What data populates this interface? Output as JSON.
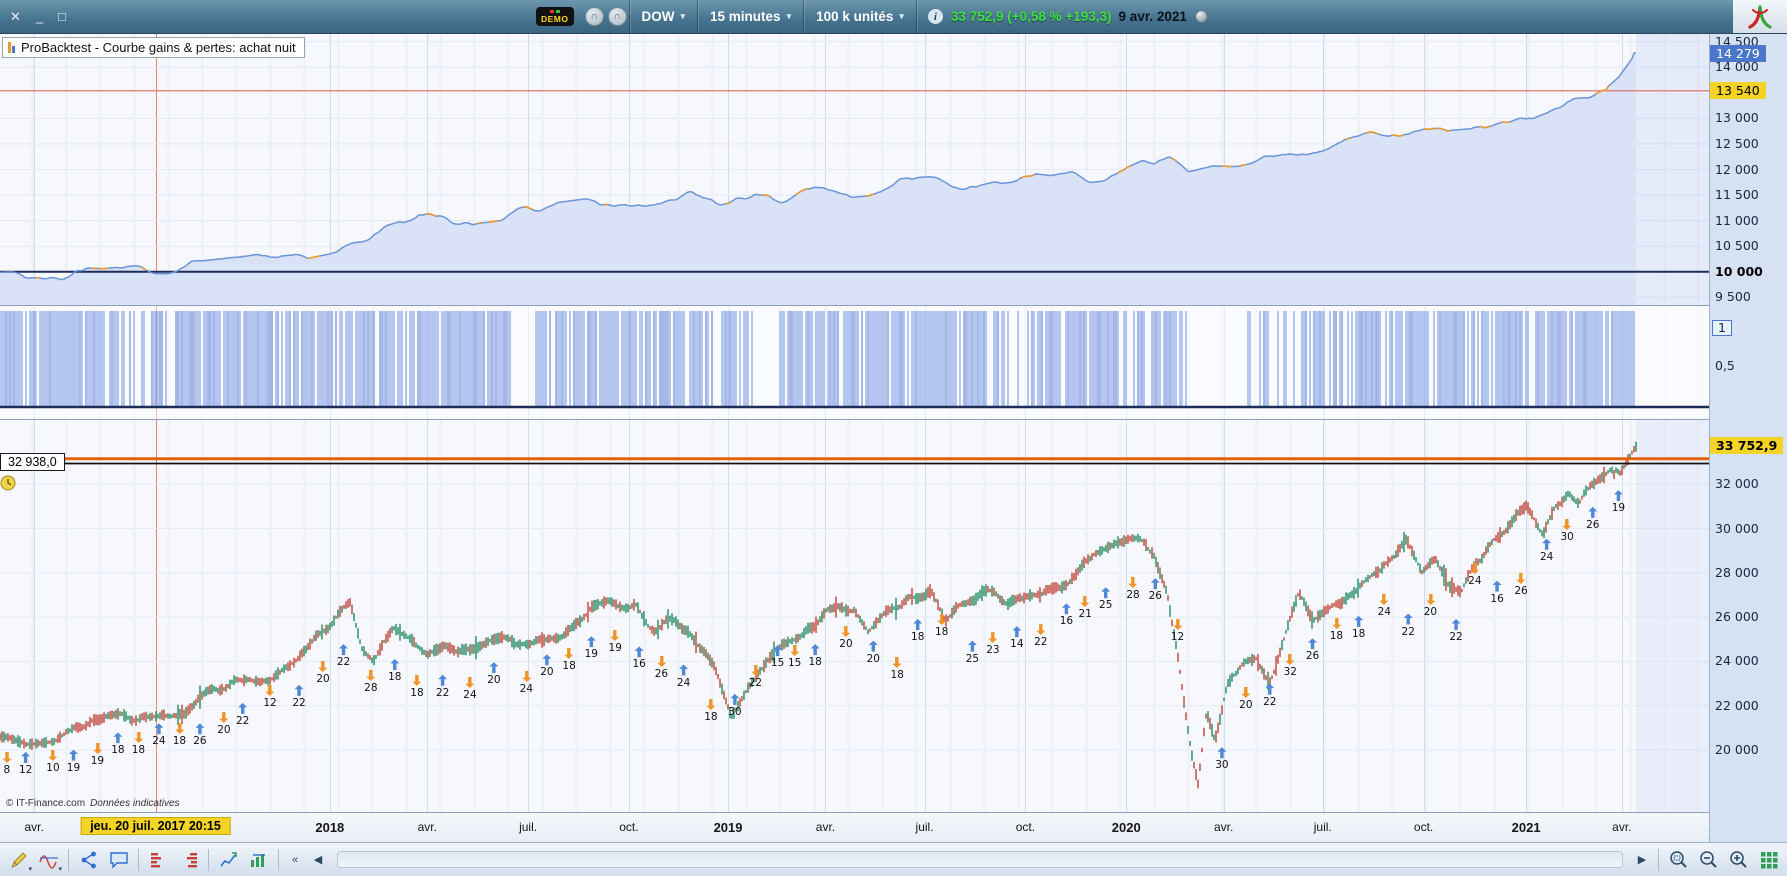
{
  "topbar": {
    "window_controls": {
      "close": "✕",
      "minimize": "_",
      "maximize": "□"
    },
    "demo_label": "DEMO",
    "symbol": "DOW",
    "timeframe": "15 minutes",
    "units": "100 k unités",
    "dropdown_arrow": "▾",
    "info_glyph": "i",
    "quote": "33 752,9 (+0,58 % +193,3)",
    "quote_date": "9 avr. 2021"
  },
  "equity_panel": {
    "title": "ProBacktest - Courbe gains & pertes: achat nuit",
    "axis": [
      {
        "t": "14 500",
        "v": 14500
      },
      {
        "t": "14 000",
        "v": 14000
      },
      {
        "t": "13 000",
        "v": 13000
      },
      {
        "t": "12 500",
        "v": 12500
      },
      {
        "t": "12 000",
        "v": 12000
      },
      {
        "t": "11 500",
        "v": 11500
      },
      {
        "t": "11 000",
        "v": 11000
      },
      {
        "t": "10 500",
        "v": 10500
      },
      {
        "t": "10 000",
        "v": 10000,
        "b": true
      },
      {
        "t": "9 500",
        "v": 9500
      }
    ],
    "badges": [
      {
        "t": "14 279",
        "v": 14279,
        "s": "blue"
      },
      {
        "t": "13 540",
        "v": 13540,
        "s": "yellow"
      }
    ]
  },
  "signal_panel": {
    "axis": [
      {
        "t": "1",
        "y": 14,
        "boxed": true
      },
      {
        "t": "0,5",
        "y": 52
      }
    ]
  },
  "price_panel": {
    "axis": [
      {
        "t": "32 000",
        "v": 32000
      },
      {
        "t": "30 000",
        "v": 30000
      },
      {
        "t": "28 000",
        "v": 28000
      },
      {
        "t": "26 000",
        "v": 26000
      },
      {
        "t": "24 000",
        "v": 24000
      },
      {
        "t": "22 000",
        "v": 22000
      },
      {
        "t": "20 000",
        "v": 20000
      }
    ],
    "badges": [
      {
        "t": "33 752,9",
        "v": 33752.9,
        "s": "yellow"
      }
    ],
    "left_tag": "32 938,0",
    "left_tag_value": 32938,
    "copyright": "© IT-Finance.com",
    "copyright_note": "Données indicatives"
  },
  "xaxis": {
    "cursor_badge": "jeu. 20 juil. 2017 20:15",
    "cursor_x": 9.1,
    "items": [
      {
        "label": "avr.",
        "x": 2.0
      },
      {
        "label": "2018",
        "x": 19.3,
        "year": true
      },
      {
        "label": "avr.",
        "x": 25.0
      },
      {
        "label": "juil.",
        "x": 30.9
      },
      {
        "label": "oct.",
        "x": 36.8
      },
      {
        "label": "2019",
        "x": 42.6,
        "year": true
      },
      {
        "label": "avr.",
        "x": 48.3
      },
      {
        "label": "juil.",
        "x": 54.1
      },
      {
        "label": "oct.",
        "x": 60.0
      },
      {
        "label": "2020",
        "x": 65.9,
        "year": true
      },
      {
        "label": "avr.",
        "x": 71.6
      },
      {
        "label": "juil.",
        "x": 77.4
      },
      {
        "label": "oct.",
        "x": 83.3
      },
      {
        "label": "2021",
        "x": 89.3,
        "year": true
      },
      {
        "label": "avr.",
        "x": 94.9
      }
    ]
  },
  "toolbar_bottom": {
    "icons": [
      "draw-tools",
      "indicator-curve",
      "share",
      "chat",
      "volume-bars",
      "volume-bars-alt",
      "backtest-chart",
      "strategy-chart",
      "collapse",
      "scroll-left",
      "scrollbar",
      "scroll-right",
      "zoom-selection",
      "zoom-out",
      "zoom-in",
      "grid-view"
    ]
  },
  "chart_data": [
    {
      "id": "equity",
      "type": "line",
      "title": "ProBacktest - Courbe gains & pertes: achat nuit",
      "ylim": [
        9350,
        14650
      ],
      "data_end": 0.957,
      "colors": {
        "line": "#6b94d9",
        "fill": "#d9e2f6",
        "alt_segments": "#ec9a2d"
      },
      "lines": [
        {
          "v": 13540,
          "c": "#e0685f",
          "w": 1.2
        },
        {
          "v": 10000,
          "c": "#1d2c58",
          "w": 2
        }
      ],
      "anchors": [
        [
          0,
          10000
        ],
        [
          0.02,
          10010
        ],
        [
          0.04,
          9960
        ],
        [
          0.06,
          9930
        ],
        [
          0.08,
          9990
        ],
        [
          0.1,
          10060
        ],
        [
          0.12,
          10090
        ],
        [
          0.145,
          10180
        ],
        [
          0.17,
          10320
        ],
        [
          0.193,
          10480
        ],
        [
          0.21,
          10640
        ],
        [
          0.23,
          10900
        ],
        [
          0.245,
          11080
        ],
        [
          0.255,
          10960
        ],
        [
          0.27,
          11020
        ],
        [
          0.29,
          11120
        ],
        [
          0.31,
          11160
        ],
        [
          0.33,
          11240
        ],
        [
          0.35,
          11330
        ],
        [
          0.37,
          11420
        ],
        [
          0.39,
          11390
        ],
        [
          0.405,
          11440
        ],
        [
          0.42,
          11310
        ],
        [
          0.435,
          11380
        ],
        [
          0.45,
          11440
        ],
        [
          0.47,
          11500
        ],
        [
          0.49,
          11560
        ],
        [
          0.51,
          11620
        ],
        [
          0.53,
          11700
        ],
        [
          0.55,
          11740
        ],
        [
          0.565,
          11640
        ],
        [
          0.58,
          11690
        ],
        [
          0.6,
          11810
        ],
        [
          0.615,
          11750
        ],
        [
          0.63,
          11850
        ],
        [
          0.645,
          11900
        ],
        [
          0.659,
          12050
        ],
        [
          0.668,
          12200
        ],
        [
          0.676,
          12050
        ],
        [
          0.685,
          12150
        ],
        [
          0.695,
          12080
        ],
        [
          0.71,
          12200
        ],
        [
          0.73,
          12180
        ],
        [
          0.75,
          12300
        ],
        [
          0.77,
          12420
        ],
        [
          0.79,
          12540
        ],
        [
          0.81,
          12650
        ],
        [
          0.83,
          12780
        ],
        [
          0.85,
          12900
        ],
        [
          0.87,
          12950
        ],
        [
          0.89,
          13060
        ],
        [
          0.905,
          13180
        ],
        [
          0.92,
          13360
        ],
        [
          0.932,
          13500
        ],
        [
          0.94,
          13620
        ],
        [
          0.948,
          13850
        ],
        [
          0.953,
          14080
        ],
        [
          0.957,
          14279
        ]
      ]
    },
    {
      "id": "signal",
      "type": "bar",
      "ylim": [
        0,
        1
      ],
      "data_end": 0.957,
      "density": [
        [
          0,
          0.06,
          0.9
        ],
        [
          0.06,
          0.09,
          0.55
        ],
        [
          0.09,
          0.2,
          0.8
        ],
        [
          0.2,
          0.3,
          0.85
        ],
        [
          0.3,
          0.313,
          0.08
        ],
        [
          0.313,
          0.36,
          0.8
        ],
        [
          0.36,
          0.44,
          0.75
        ],
        [
          0.44,
          0.456,
          0.06
        ],
        [
          0.456,
          0.52,
          0.8
        ],
        [
          0.52,
          0.59,
          0.75
        ],
        [
          0.59,
          0.601,
          0.12
        ],
        [
          0.601,
          0.66,
          0.85
        ],
        [
          0.66,
          0.695,
          0.8
        ],
        [
          0.695,
          0.728,
          0.06
        ],
        [
          0.728,
          0.79,
          0.45
        ],
        [
          0.79,
          0.9,
          0.8
        ],
        [
          0.9,
          0.957,
          0.85
        ],
        [
          0.957,
          1,
          0
        ]
      ]
    },
    {
      "id": "price",
      "type": "candlestick",
      "ylim": [
        17200,
        34900
      ],
      "data_end": 0.957,
      "lines": [
        {
          "v": 33150,
          "c": "#e2620c",
          "w": 3
        },
        {
          "v": 32938,
          "c": "#141414",
          "w": 1.8
        }
      ],
      "anchors": [
        [
          0,
          20600
        ],
        [
          0.02,
          20700
        ],
        [
          0.05,
          20950
        ],
        [
          0.079,
          21350
        ],
        [
          0.1,
          21850
        ],
        [
          0.12,
          22300
        ],
        [
          0.138,
          23050
        ],
        [
          0.16,
          23600
        ],
        [
          0.18,
          24600
        ],
        [
          0.196,
          25700
        ],
        [
          0.205,
          26500
        ],
        [
          0.212,
          24600
        ],
        [
          0.218,
          23900
        ],
        [
          0.23,
          25100
        ],
        [
          0.242,
          24500
        ],
        [
          0.25,
          23900
        ],
        [
          0.26,
          24300
        ],
        [
          0.272,
          24100
        ],
        [
          0.285,
          24600
        ],
        [
          0.3,
          24900
        ],
        [
          0.315,
          25300
        ],
        [
          0.33,
          25500
        ],
        [
          0.345,
          26000
        ],
        [
          0.36,
          26500
        ],
        [
          0.372,
          26800
        ],
        [
          0.383,
          25400
        ],
        [
          0.395,
          25700
        ],
        [
          0.405,
          25200
        ],
        [
          0.418,
          24200
        ],
        [
          0.428,
          21900
        ],
        [
          0.438,
          23200
        ],
        [
          0.45,
          24400
        ],
        [
          0.465,
          25400
        ],
        [
          0.478,
          25900
        ],
        [
          0.49,
          26400
        ],
        [
          0.5,
          26200
        ],
        [
          0.508,
          24900
        ],
        [
          0.52,
          26000
        ],
        [
          0.532,
          26600
        ],
        [
          0.545,
          27200
        ],
        [
          0.553,
          25700
        ],
        [
          0.565,
          26300
        ],
        [
          0.578,
          26900
        ],
        [
          0.59,
          26300
        ],
        [
          0.6,
          26900
        ],
        [
          0.612,
          27300
        ],
        [
          0.625,
          27800
        ],
        [
          0.64,
          28400
        ],
        [
          0.655,
          29000
        ],
        [
          0.668,
          29450
        ],
        [
          0.675,
          29200
        ],
        [
          0.683,
          27500
        ],
        [
          0.69,
          24000
        ],
        [
          0.697,
          19800
        ],
        [
          0.701,
          18300
        ],
        [
          0.706,
          21300
        ],
        [
          0.711,
          20000
        ],
        [
          0.718,
          22700
        ],
        [
          0.727,
          23600
        ],
        [
          0.735,
          24300
        ],
        [
          0.743,
          23200
        ],
        [
          0.752,
          25000
        ],
        [
          0.76,
          26800
        ],
        [
          0.768,
          25400
        ],
        [
          0.776,
          25900
        ],
        [
          0.785,
          26500
        ],
        [
          0.795,
          27000
        ],
        [
          0.805,
          27900
        ],
        [
          0.815,
          28400
        ],
        [
          0.823,
          29100
        ],
        [
          0.832,
          27600
        ],
        [
          0.84,
          28300
        ],
        [
          0.848,
          27000
        ],
        [
          0.855,
          26700
        ],
        [
          0.862,
          28100
        ],
        [
          0.87,
          29400
        ],
        [
          0.878,
          29900
        ],
        [
          0.886,
          30200
        ],
        [
          0.893,
          30900
        ],
        [
          0.898,
          30400
        ],
        [
          0.903,
          30000
        ],
        [
          0.91,
          31100
        ],
        [
          0.918,
          31500
        ],
        [
          0.924,
          31000
        ],
        [
          0.93,
          31600
        ],
        [
          0.937,
          32200
        ],
        [
          0.943,
          32900
        ],
        [
          0.948,
          32600
        ],
        [
          0.952,
          33100
        ],
        [
          0.955,
          33500
        ],
        [
          0.957,
          33750
        ]
      ],
      "markers": [
        [
          0.4,
          90.8,
          "d",
          "8"
        ],
        [
          1.5,
          90.8,
          "u",
          "12"
        ],
        [
          3.1,
          90.2,
          "d",
          "10"
        ],
        [
          4.3,
          90.2,
          "u",
          "19"
        ],
        [
          5.7,
          88.4,
          "d",
          "19"
        ],
        [
          6.9,
          85.8,
          "u",
          "18"
        ],
        [
          8.1,
          85.8,
          "d",
          "18"
        ],
        [
          9.3,
          83.5,
          "u",
          "24"
        ],
        [
          10.5,
          83.5,
          "d",
          "18"
        ],
        [
          11.7,
          83.5,
          "u",
          "26"
        ],
        [
          13.1,
          80.6,
          "d",
          "20"
        ],
        [
          14.2,
          78.3,
          "u",
          "22"
        ],
        [
          15.8,
          73.7,
          "d",
          "12"
        ],
        [
          17.5,
          73.7,
          "u",
          "22"
        ],
        [
          18.9,
          67.6,
          "d",
          "20"
        ],
        [
          20.1,
          63.3,
          "u",
          "22"
        ],
        [
          21.7,
          69.9,
          "d",
          "28"
        ],
        [
          23.1,
          67.1,
          "u",
          "18"
        ],
        [
          24.4,
          71.1,
          "d",
          "18"
        ],
        [
          25.9,
          71.1,
          "u",
          "22"
        ],
        [
          27.5,
          71.7,
          "d",
          "24"
        ],
        [
          28.9,
          67.9,
          "u",
          "20"
        ],
        [
          30.8,
          70.2,
          "d",
          "24"
        ],
        [
          32.0,
          65.9,
          "u",
          "20"
        ],
        [
          33.3,
          64.2,
          "d",
          "18"
        ],
        [
          34.6,
          61.3,
          "u",
          "19"
        ],
        [
          36.0,
          59.8,
          "d",
          "19"
        ],
        [
          37.4,
          63.9,
          "u",
          "16"
        ],
        [
          38.7,
          66.2,
          "d",
          "26"
        ],
        [
          40.0,
          68.5,
          "u",
          "24"
        ],
        [
          41.6,
          77.2,
          "d",
          "18"
        ],
        [
          43.0,
          76.0,
          "u",
          "30"
        ],
        [
          44.2,
          68.5,
          "d",
          "22"
        ],
        [
          45.5,
          63.6,
          "u",
          "15"
        ],
        [
          46.5,
          63.6,
          "d",
          "15"
        ],
        [
          47.7,
          63.3,
          "u",
          "18"
        ],
        [
          49.5,
          58.7,
          "d",
          "20"
        ],
        [
          51.1,
          62.4,
          "u",
          "20"
        ],
        [
          52.5,
          66.5,
          "d",
          "18"
        ],
        [
          53.7,
          56.9,
          "u",
          "18"
        ],
        [
          55.1,
          55.5,
          "d",
          "18"
        ],
        [
          56.9,
          62.4,
          "u",
          "25"
        ],
        [
          58.1,
          60.1,
          "d",
          "23"
        ],
        [
          59.5,
          58.7,
          "u",
          "14"
        ],
        [
          60.9,
          58.1,
          "d",
          "22"
        ],
        [
          62.4,
          52.9,
          "u",
          "16"
        ],
        [
          63.5,
          50.9,
          "d",
          "21"
        ],
        [
          64.7,
          48.8,
          "u",
          "25"
        ],
        [
          66.3,
          46.2,
          "d",
          "28"
        ],
        [
          67.6,
          46.5,
          "u",
          "26"
        ],
        [
          68.9,
          56.9,
          "d",
          "12"
        ],
        [
          71.5,
          89.6,
          "u",
          "30"
        ],
        [
          72.9,
          74.3,
          "d",
          "20"
        ],
        [
          74.3,
          73.4,
          "u",
          "22"
        ],
        [
          75.5,
          65.9,
          "d",
          "32"
        ],
        [
          76.8,
          61.8,
          "u",
          "26"
        ],
        [
          78.2,
          56.6,
          "d",
          "18"
        ],
        [
          79.5,
          56.1,
          "u",
          "18"
        ],
        [
          81.0,
          50.6,
          "d",
          "24"
        ],
        [
          82.4,
          55.5,
          "u",
          "22"
        ],
        [
          83.7,
          50.6,
          "d",
          "20"
        ],
        [
          85.2,
          56.9,
          "u",
          "22"
        ],
        [
          86.3,
          42.5,
          "d",
          "24"
        ],
        [
          87.6,
          47.1,
          "u",
          "16"
        ],
        [
          89.0,
          45.1,
          "d",
          "26"
        ],
        [
          90.5,
          36.4,
          "u",
          "24"
        ],
        [
          91.7,
          31.5,
          "d",
          "30"
        ],
        [
          93.2,
          28.3,
          "u",
          "26"
        ],
        [
          94.7,
          24.0,
          "u",
          "19"
        ]
      ]
    }
  ]
}
